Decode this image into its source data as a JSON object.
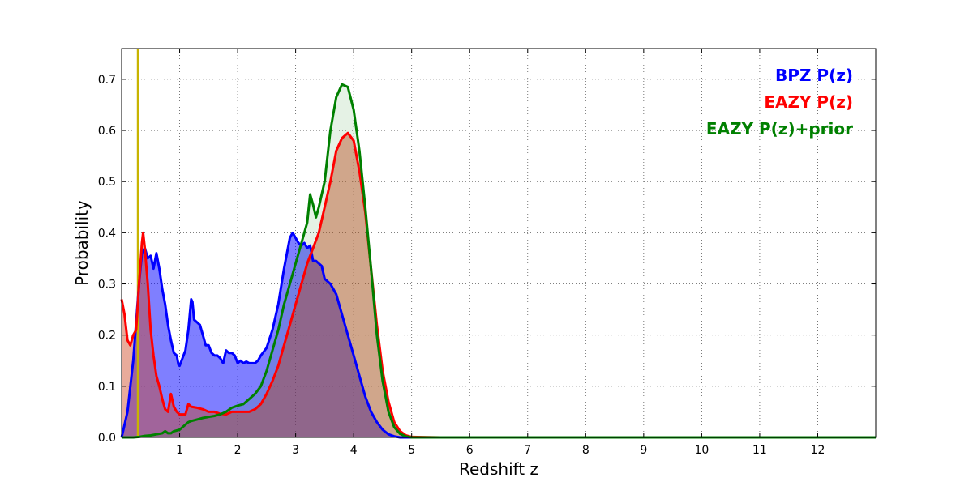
{
  "chart_data": {
    "type": "area",
    "title": "",
    "xlabel": "Redshift z",
    "ylabel": "Probability",
    "xlim": [
      0,
      13
    ],
    "ylim": [
      0,
      0.76
    ],
    "grid": true,
    "legend_placement": "top-right",
    "x_ticks": [
      1,
      2,
      3,
      4,
      5,
      6,
      7,
      8,
      9,
      10,
      11,
      12
    ],
    "x_tick_labels": [
      "1",
      "2",
      "3",
      "4",
      "5",
      "6",
      "7",
      "8",
      "9",
      "10",
      "11",
      "12"
    ],
    "y_ticks": [
      0,
      0.1,
      0.2,
      0.3,
      0.4,
      0.5,
      0.6,
      0.7
    ],
    "y_tick_labels": [
      "0.0",
      "0.1",
      "0.2",
      "0.3",
      "0.4",
      "0.5",
      "0.6",
      "0.7"
    ],
    "vertical_line": {
      "x": 0.28,
      "color": "#c8b400"
    },
    "series": [
      {
        "name": "BPZ P(z)",
        "color": "#0000ff",
        "fill": "#0000ff",
        "fill_opacity": 0.5,
        "points": [
          [
            0,
            0.0
          ],
          [
            0.1,
            0.05
          ],
          [
            0.2,
            0.15
          ],
          [
            0.3,
            0.3
          ],
          [
            0.35,
            0.36
          ],
          [
            0.4,
            0.37
          ],
          [
            0.45,
            0.35
          ],
          [
            0.5,
            0.355
          ],
          [
            0.55,
            0.33
          ],
          [
            0.6,
            0.36
          ],
          [
            0.65,
            0.33
          ],
          [
            0.7,
            0.29
          ],
          [
            0.75,
            0.26
          ],
          [
            0.8,
            0.22
          ],
          [
            0.85,
            0.19
          ],
          [
            0.9,
            0.165
          ],
          [
            0.95,
            0.16
          ],
          [
            0.98,
            0.142
          ],
          [
            1.0,
            0.14
          ],
          [
            1.05,
            0.155
          ],
          [
            1.1,
            0.17
          ],
          [
            1.15,
            0.21
          ],
          [
            1.2,
            0.27
          ],
          [
            1.22,
            0.265
          ],
          [
            1.25,
            0.23
          ],
          [
            1.3,
            0.225
          ],
          [
            1.35,
            0.22
          ],
          [
            1.4,
            0.2
          ],
          [
            1.45,
            0.18
          ],
          [
            1.5,
            0.18
          ],
          [
            1.55,
            0.165
          ],
          [
            1.6,
            0.16
          ],
          [
            1.65,
            0.16
          ],
          [
            1.7,
            0.155
          ],
          [
            1.75,
            0.145
          ],
          [
            1.8,
            0.17
          ],
          [
            1.85,
            0.165
          ],
          [
            1.9,
            0.165
          ],
          [
            1.95,
            0.16
          ],
          [
            2.0,
            0.145
          ],
          [
            2.05,
            0.15
          ],
          [
            2.1,
            0.145
          ],
          [
            2.15,
            0.148
          ],
          [
            2.2,
            0.145
          ],
          [
            2.3,
            0.145
          ],
          [
            2.35,
            0.15
          ],
          [
            2.4,
            0.16
          ],
          [
            2.5,
            0.175
          ],
          [
            2.6,
            0.21
          ],
          [
            2.7,
            0.26
          ],
          [
            2.8,
            0.33
          ],
          [
            2.9,
            0.39
          ],
          [
            2.95,
            0.4
          ],
          [
            3.0,
            0.39
          ],
          [
            3.05,
            0.38
          ],
          [
            3.1,
            0.375
          ],
          [
            3.15,
            0.38
          ],
          [
            3.2,
            0.37
          ],
          [
            3.25,
            0.375
          ],
          [
            3.3,
            0.345
          ],
          [
            3.35,
            0.345
          ],
          [
            3.4,
            0.34
          ],
          [
            3.45,
            0.335
          ],
          [
            3.5,
            0.31
          ],
          [
            3.6,
            0.3
          ],
          [
            3.7,
            0.28
          ],
          [
            3.8,
            0.24
          ],
          [
            3.9,
            0.2
          ],
          [
            4.0,
            0.16
          ],
          [
            4.1,
            0.12
          ],
          [
            4.2,
            0.08
          ],
          [
            4.3,
            0.05
          ],
          [
            4.4,
            0.03
          ],
          [
            4.5,
            0.015
          ],
          [
            4.6,
            0.006
          ],
          [
            4.7,
            0.002
          ],
          [
            4.8,
            0.0
          ],
          [
            5.0,
            0.0
          ],
          [
            6.0,
            0.0
          ],
          [
            8.0,
            0.0
          ],
          [
            10.0,
            0.0
          ],
          [
            13.0,
            0.0
          ]
        ]
      },
      {
        "name": "EAZY P(z)",
        "color": "#ff0000",
        "fill": "#cc4422",
        "fill_opacity": 0.45,
        "points": [
          [
            0.0,
            0.27
          ],
          [
            0.05,
            0.24
          ],
          [
            0.1,
            0.19
          ],
          [
            0.15,
            0.18
          ],
          [
            0.2,
            0.2
          ],
          [
            0.25,
            0.21
          ],
          [
            0.3,
            0.3
          ],
          [
            0.35,
            0.38
          ],
          [
            0.37,
            0.4
          ],
          [
            0.4,
            0.37
          ],
          [
            0.45,
            0.3
          ],
          [
            0.5,
            0.21
          ],
          [
            0.55,
            0.16
          ],
          [
            0.6,
            0.12
          ],
          [
            0.65,
            0.1
          ],
          [
            0.7,
            0.075
          ],
          [
            0.75,
            0.055
          ],
          [
            0.8,
            0.05
          ],
          [
            0.85,
            0.085
          ],
          [
            0.9,
            0.06
          ],
          [
            0.95,
            0.05
          ],
          [
            1.0,
            0.045
          ],
          [
            1.05,
            0.045
          ],
          [
            1.1,
            0.045
          ],
          [
            1.15,
            0.065
          ],
          [
            1.2,
            0.06
          ],
          [
            1.3,
            0.058
          ],
          [
            1.4,
            0.055
          ],
          [
            1.5,
            0.05
          ],
          [
            1.6,
            0.05
          ],
          [
            1.7,
            0.046
          ],
          [
            1.8,
            0.045
          ],
          [
            1.9,
            0.05
          ],
          [
            2.0,
            0.05
          ],
          [
            2.1,
            0.05
          ],
          [
            2.2,
            0.05
          ],
          [
            2.3,
            0.055
          ],
          [
            2.4,
            0.065
          ],
          [
            2.5,
            0.085
          ],
          [
            2.6,
            0.11
          ],
          [
            2.7,
            0.14
          ],
          [
            2.8,
            0.18
          ],
          [
            2.9,
            0.22
          ],
          [
            3.0,
            0.26
          ],
          [
            3.1,
            0.3
          ],
          [
            3.2,
            0.34
          ],
          [
            3.3,
            0.37
          ],
          [
            3.4,
            0.4
          ],
          [
            3.5,
            0.45
          ],
          [
            3.6,
            0.5
          ],
          [
            3.7,
            0.56
          ],
          [
            3.8,
            0.585
          ],
          [
            3.9,
            0.595
          ],
          [
            4.0,
            0.58
          ],
          [
            4.1,
            0.52
          ],
          [
            4.2,
            0.44
          ],
          [
            4.3,
            0.33
          ],
          [
            4.4,
            0.22
          ],
          [
            4.5,
            0.13
          ],
          [
            4.6,
            0.07
          ],
          [
            4.7,
            0.03
          ],
          [
            4.8,
            0.012
          ],
          [
            4.9,
            0.004
          ],
          [
            5.0,
            0.001
          ],
          [
            5.5,
            0.0
          ],
          [
            13.0,
            0.0
          ]
        ]
      },
      {
        "name": "EAZY P(z)+prior",
        "color": "#008000",
        "fill": "#008000",
        "fill_opacity": 0.1,
        "points": [
          [
            0.0,
            0.0
          ],
          [
            0.2,
            0.0
          ],
          [
            0.3,
            0.001
          ],
          [
            0.4,
            0.003
          ],
          [
            0.5,
            0.004
          ],
          [
            0.6,
            0.006
          ],
          [
            0.7,
            0.008
          ],
          [
            0.75,
            0.012
          ],
          [
            0.8,
            0.008
          ],
          [
            0.85,
            0.008
          ],
          [
            0.9,
            0.012
          ],
          [
            1.0,
            0.015
          ],
          [
            1.05,
            0.02
          ],
          [
            1.1,
            0.025
          ],
          [
            1.15,
            0.03
          ],
          [
            1.2,
            0.032
          ],
          [
            1.3,
            0.035
          ],
          [
            1.4,
            0.038
          ],
          [
            1.5,
            0.04
          ],
          [
            1.6,
            0.042
          ],
          [
            1.7,
            0.045
          ],
          [
            1.8,
            0.05
          ],
          [
            1.9,
            0.058
          ],
          [
            2.0,
            0.062
          ],
          [
            2.1,
            0.065
          ],
          [
            2.2,
            0.075
          ],
          [
            2.3,
            0.085
          ],
          [
            2.4,
            0.1
          ],
          [
            2.5,
            0.13
          ],
          [
            2.6,
            0.17
          ],
          [
            2.7,
            0.21
          ],
          [
            2.8,
            0.26
          ],
          [
            2.9,
            0.3
          ],
          [
            3.0,
            0.34
          ],
          [
            3.1,
            0.38
          ],
          [
            3.2,
            0.42
          ],
          [
            3.25,
            0.475
          ],
          [
            3.3,
            0.455
          ],
          [
            3.35,
            0.43
          ],
          [
            3.4,
            0.45
          ],
          [
            3.5,
            0.5
          ],
          [
            3.6,
            0.6
          ],
          [
            3.7,
            0.665
          ],
          [
            3.8,
            0.69
          ],
          [
            3.9,
            0.685
          ],
          [
            4.0,
            0.64
          ],
          [
            4.1,
            0.56
          ],
          [
            4.2,
            0.45
          ],
          [
            4.3,
            0.33
          ],
          [
            4.4,
            0.2
          ],
          [
            4.5,
            0.11
          ],
          [
            4.6,
            0.05
          ],
          [
            4.7,
            0.02
          ],
          [
            4.8,
            0.007
          ],
          [
            4.9,
            0.002
          ],
          [
            5.0,
            0.0
          ],
          [
            13.0,
            0.0
          ]
        ]
      }
    ]
  }
}
